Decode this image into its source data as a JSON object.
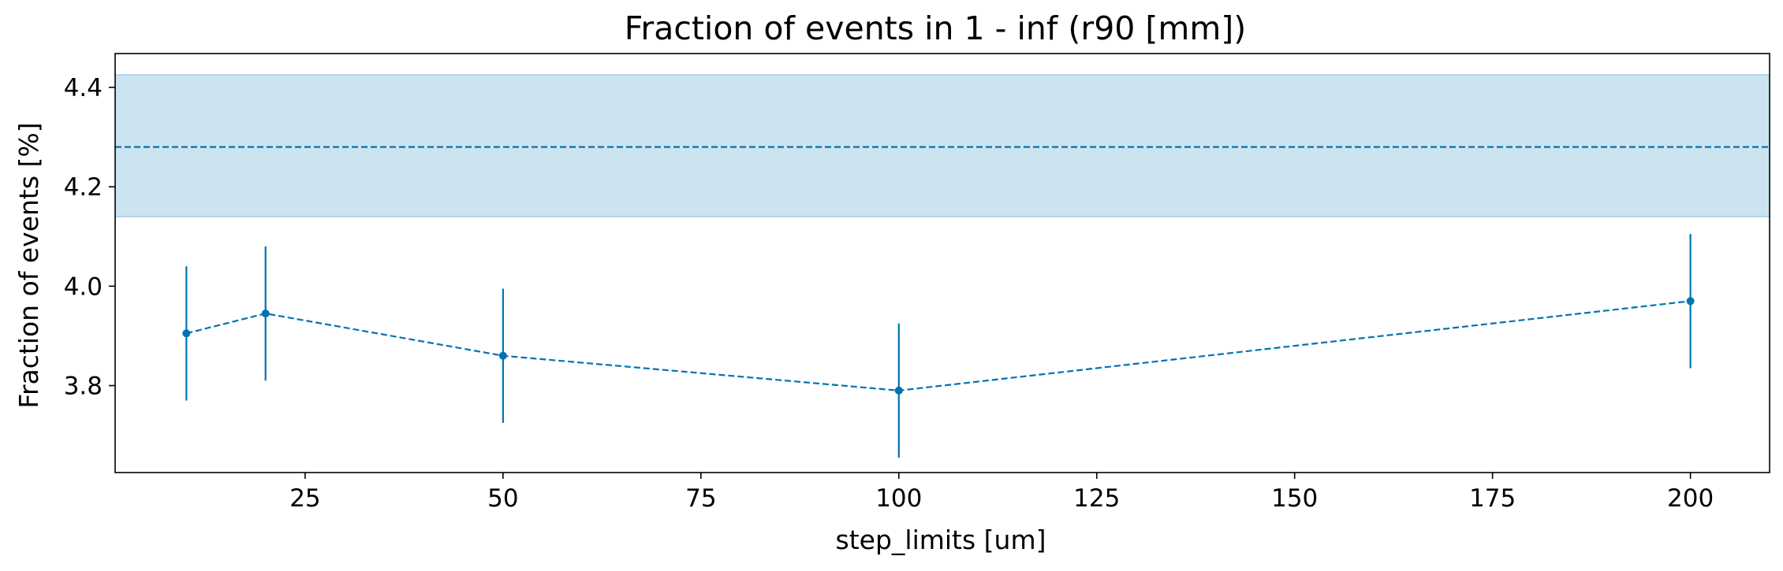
{
  "chart_data": {
    "type": "line",
    "title": "Fraction of events in 1 - inf (r90 [mm])",
    "xlabel": "step_limits [um]",
    "ylabel": "Fraction of events [%]",
    "xlim": [
      1,
      210
    ],
    "ylim": [
      3.625,
      4.468
    ],
    "xticks": [
      25,
      50,
      75,
      100,
      125,
      150,
      175,
      200
    ],
    "yticks": [
      3.8,
      4.0,
      4.2,
      4.4
    ],
    "grid": false,
    "series": [
      {
        "x": [
          10,
          20,
          50,
          100,
          200
        ],
        "values": [
          3.905,
          3.945,
          3.86,
          3.79,
          3.97
        ],
        "yerr": [
          0.135,
          0.135,
          0.135,
          0.135,
          0.135
        ],
        "line_style": "dashed",
        "marker": "dot",
        "color": "#0173b2"
      }
    ],
    "reference": {
      "value": 4.28,
      "band": [
        4.14,
        4.425
      ],
      "line_style": "dashed",
      "color": "#0173b2",
      "band_color": "#cce3f0"
    }
  }
}
